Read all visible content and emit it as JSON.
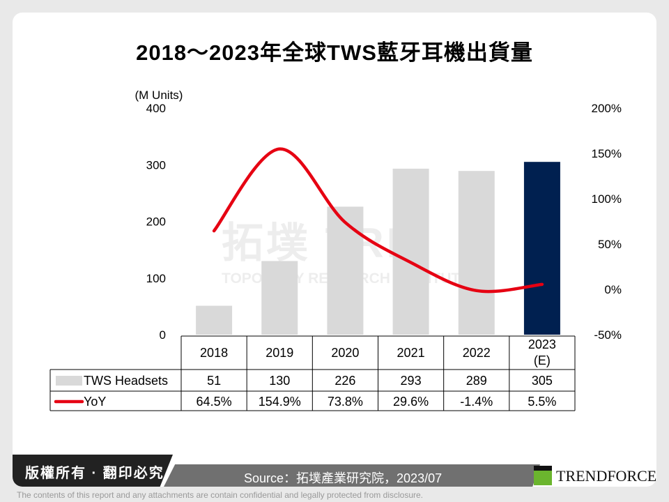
{
  "title": "2018～2023年全球TWS藍牙耳機出貨量",
  "watermark": {
    "main": "拓墣 TRI",
    "sub": "TOPOLOGY RESEARCH INSTITUTE"
  },
  "footer": {
    "copyright": "版權所有 · 翻印必究",
    "source": "Source：拓墣產業研究院，2023/07",
    "brand": "TRENDFORCE",
    "disclaimer": "The contents of this report and any attachments are contain confidential and legally protected from disclosure."
  },
  "chart_data": {
    "type": "bar+line",
    "title": "2018～2023年全球TWS藍牙耳機出貨量",
    "ylabel": "(M Units)",
    "ylim": [
      0,
      400
    ],
    "yticks": [
      "0",
      "100",
      "200",
      "300",
      "400"
    ],
    "y2lim": [
      -50,
      200
    ],
    "y2ticks": [
      "-50%",
      "0%",
      "50%",
      "100%",
      "150%",
      "200%"
    ],
    "categories": [
      "2018",
      "2019",
      "2020",
      "2021",
      "2022",
      "2023\n(E)"
    ],
    "series": [
      {
        "name": "TWS Headsets",
        "type": "bar",
        "values": [
          51,
          130,
          226,
          293,
          289,
          305
        ],
        "labels": [
          "51",
          "130",
          "226",
          "293",
          "289",
          "305"
        ],
        "color": "#d9d9d9",
        "highlight_color": "#002050"
      },
      {
        "name": "YoY",
        "type": "line",
        "axis": "right",
        "values": [
          64.5,
          154.9,
          73.8,
          29.6,
          -1.4,
          5.5
        ],
        "labels": [
          "64.5%",
          "154.9%",
          "73.8%",
          "29.6%",
          "-1.4%",
          "5.5%"
        ],
        "color": "#e60012"
      }
    ],
    "grid": false,
    "legend": "table"
  }
}
